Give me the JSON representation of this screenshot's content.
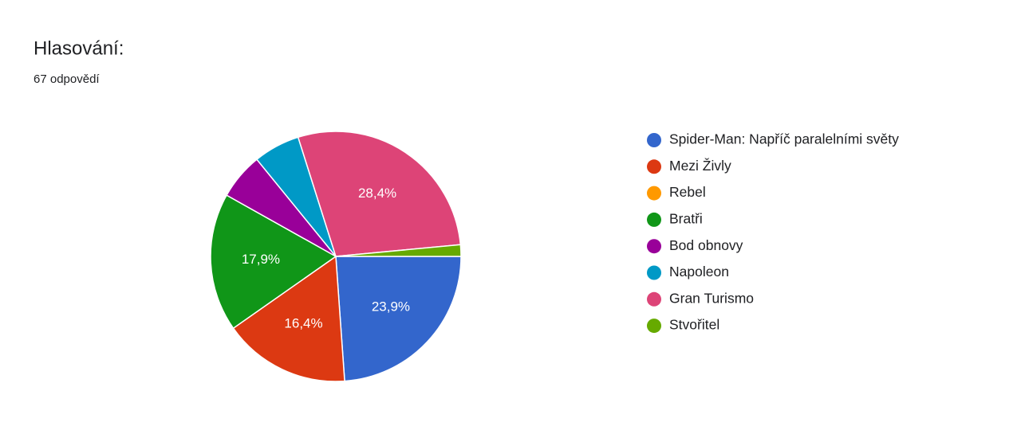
{
  "chart_data": {
    "type": "pie",
    "title": "Hlasování:",
    "subtitle": "67 odpovědí",
    "categories": [
      "Spider-Man: Napříč paralelními světy",
      "Mezi Živly",
      "Rebel",
      "Bratři",
      "Bod obnovy",
      "Napoleon",
      "Gran Turismo",
      "Stvořitel"
    ],
    "values": [
      23.9,
      16.4,
      0,
      17.9,
      6.0,
      6.0,
      28.4,
      1.5
    ],
    "value_labels": [
      "23,9%",
      "16,4%",
      null,
      "17,9%",
      null,
      null,
      "28,4%",
      null
    ],
    "colors": [
      "#3366cc",
      "#dc3912",
      "#ff9900",
      "#109618",
      "#990099",
      "#0099c6",
      "#dd4477",
      "#66aa00"
    ],
    "legend": "right"
  }
}
